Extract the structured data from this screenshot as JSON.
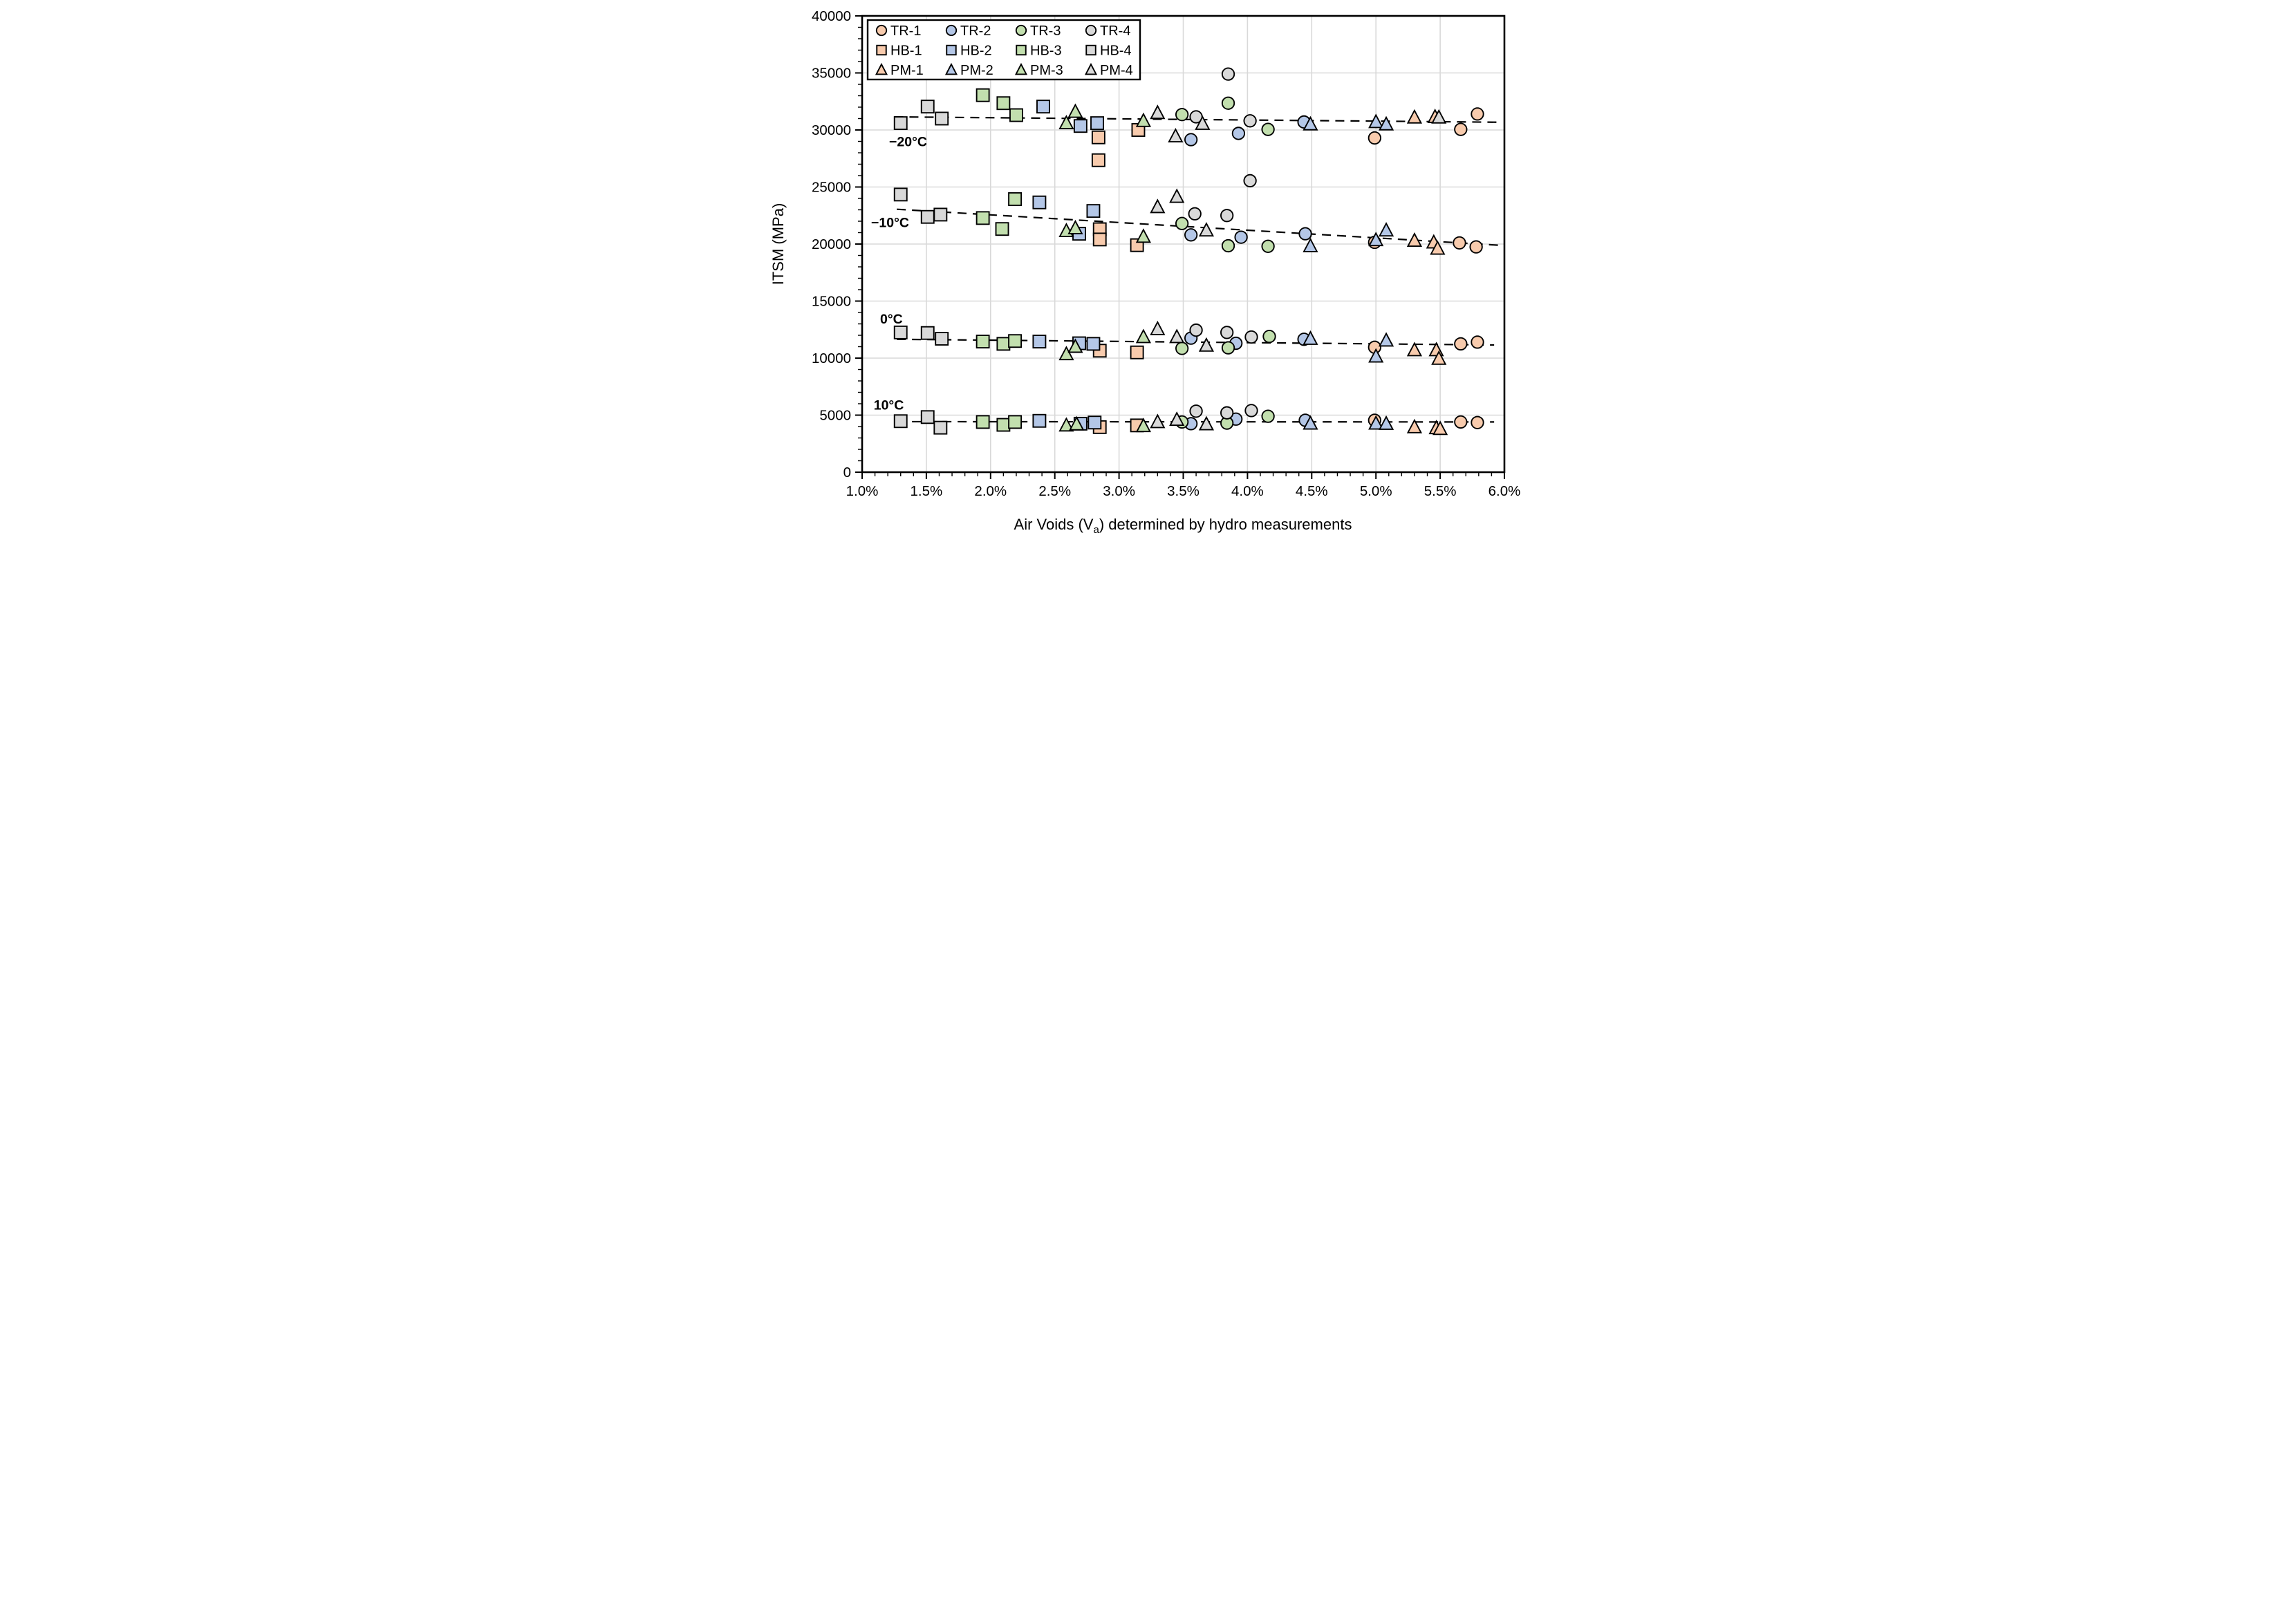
{
  "chart_data": {
    "type": "scatter",
    "title": "",
    "ylabel": "ITSM (MPa)",
    "xlabel_parts": [
      "Air Voids (V",
      "a",
      ") determined by hydro measurements"
    ],
    "xlim": [
      1.0,
      6.0
    ],
    "ylim": [
      0,
      40000
    ],
    "grid": true,
    "legend_position": "top-left",
    "x_tick_labels": [
      "1.0%",
      "1.5%",
      "2.0%",
      "2.5%",
      "3.0%",
      "3.5%",
      "4.0%",
      "4.5%",
      "5.0%",
      "5.5%",
      "6.0%"
    ],
    "x_major_values": [
      1.0,
      1.5,
      2.0,
      2.5,
      3.0,
      3.5,
      4.0,
      4.5,
      5.0,
      5.5,
      6.0
    ],
    "x_minor_step": 0.1,
    "y_tick_labels": [
      "0",
      "5000",
      "10000",
      "15000",
      "20000",
      "25000",
      "30000",
      "35000",
      "40000"
    ],
    "y_major_values": [
      0,
      5000,
      10000,
      15000,
      20000,
      25000,
      30000,
      35000,
      40000
    ],
    "y_minor_step": 1000,
    "colors": {
      "orange": "#F8CBAD",
      "blue": "#B4C7E7",
      "green": "#C2DFAE",
      "gray": "#D9D9D9",
      "outline": "#000000",
      "gridline": "#D9D9D9",
      "trendline": "#000000"
    },
    "temperature_groups": [
      {
        "key": "m20",
        "label": "−20°C",
        "label_at": [
          1.21,
          29000
        ],
        "trend": [
          [
            1.25,
            31150
          ],
          [
            5.95,
            30680
          ]
        ]
      },
      {
        "key": "m10",
        "label": "−10°C",
        "label_at": [
          1.07,
          21900
        ],
        "trend": [
          [
            1.27,
            23050
          ],
          [
            5.95,
            19900
          ]
        ]
      },
      {
        "key": "p0",
        "label": "0°C",
        "label_at": [
          1.14,
          13450
        ],
        "trend": [
          [
            1.27,
            11650
          ],
          [
            5.92,
            11150
          ]
        ]
      },
      {
        "key": "p10",
        "label": "10°C",
        "label_at": [
          1.09,
          5900
        ],
        "trend": [
          [
            1.27,
            4430
          ],
          [
            5.92,
            4400
          ]
        ]
      }
    ],
    "series": [
      {
        "name": "TR-1",
        "marker": "circle",
        "color_key": "orange",
        "points": {
          "m20": [
            [
              4.99,
              29300
            ],
            [
              5.66,
              30050
            ],
            [
              5.79,
              31400
            ]
          ],
          "m10": [
            [
              4.99,
              20150
            ],
            [
              5.65,
              20100
            ],
            [
              5.78,
              19750
            ]
          ],
          "p0": [
            [
              4.99,
              10950
            ],
            [
              5.66,
              11250
            ],
            [
              5.79,
              11400
            ]
          ],
          "p10": [
            [
              4.99,
              4550
            ],
            [
              5.66,
              4400
            ],
            [
              5.79,
              4350
            ]
          ]
        }
      },
      {
        "name": "TR-2",
        "marker": "circle",
        "color_key": "blue",
        "points": {
          "m20": [
            [
              3.56,
              29150
            ],
            [
              3.93,
              29700
            ],
            [
              4.44,
              30700
            ]
          ],
          "m10": [
            [
              3.56,
              20800
            ],
            [
              3.95,
              20600
            ],
            [
              4.45,
              20900
            ]
          ],
          "p0": [
            [
              3.56,
              11750
            ],
            [
              3.91,
              11300
            ],
            [
              4.44,
              11650
            ]
          ],
          "p10": [
            [
              3.56,
              4250
            ],
            [
              3.91,
              4650
            ],
            [
              4.45,
              4550
            ]
          ]
        }
      },
      {
        "name": "TR-3",
        "marker": "circle",
        "color_key": "green",
        "points": {
          "m20": [
            [
              3.49,
              31350
            ],
            [
              3.85,
              32350
            ],
            [
              4.16,
              30050
            ]
          ],
          "m10": [
            [
              3.49,
              21800
            ],
            [
              3.85,
              19850
            ],
            [
              4.16,
              19800
            ]
          ],
          "p0": [
            [
              3.49,
              10850
            ],
            [
              3.85,
              10900
            ],
            [
              4.17,
              11900
            ]
          ],
          "p10": [
            [
              3.49,
              4400
            ],
            [
              3.84,
              4300
            ],
            [
              4.16,
              4900
            ]
          ]
        }
      },
      {
        "name": "TR-4",
        "marker": "circle",
        "color_key": "gray",
        "points": {
          "m20": [
            [
              3.6,
              31150
            ],
            [
              3.85,
              34900
            ],
            [
              4.02,
              30800
            ]
          ],
          "m10": [
            [
              3.59,
              22650
            ],
            [
              3.84,
              22500
            ],
            [
              4.02,
              25550
            ]
          ],
          "p0": [
            [
              3.6,
              12450
            ],
            [
              3.84,
              12250
            ],
            [
              4.03,
              11850
            ]
          ],
          "p10": [
            [
              3.6,
              5350
            ],
            [
              3.84,
              5200
            ],
            [
              4.03,
              5400
            ]
          ]
        }
      },
      {
        "name": "HB-1",
        "marker": "square",
        "color_key": "orange",
        "points": {
          "m20": [
            [
              2.84,
              29350
            ],
            [
              2.84,
              27350
            ],
            [
              3.15,
              30000
            ]
          ],
          "m10": [
            [
              2.85,
              21300
            ],
            [
              2.85,
              20400
            ],
            [
              3.14,
              19900
            ]
          ],
          "p0": [
            [
              2.85,
              10650
            ],
            [
              3.14,
              10500
            ]
          ],
          "p10": [
            [
              2.85,
              3950
            ],
            [
              3.14,
              4100
            ]
          ]
        }
      },
      {
        "name": "HB-2",
        "marker": "square",
        "color_key": "blue",
        "points": {
          "m20": [
            [
              2.41,
              32050
            ],
            [
              2.7,
              30350
            ],
            [
              2.83,
              30600
            ]
          ],
          "m10": [
            [
              2.38,
              23650
            ],
            [
              2.69,
              20900
            ],
            [
              2.8,
              22900
            ]
          ],
          "p0": [
            [
              2.38,
              11450
            ],
            [
              2.69,
              11300
            ],
            [
              2.8,
              11250
            ]
          ],
          "p10": [
            [
              2.38,
              4500
            ],
            [
              2.7,
              4250
            ],
            [
              2.81,
              4350
            ]
          ]
        }
      },
      {
        "name": "HB-3",
        "marker": "square",
        "color_key": "green",
        "points": {
          "m20": [
            [
              1.94,
              33050
            ],
            [
              2.1,
              32350
            ],
            [
              2.2,
              31300
            ]
          ],
          "m10": [
            [
              1.94,
              22280
            ],
            [
              2.09,
              21320
            ],
            [
              2.19,
              23940
            ]
          ],
          "p0": [
            [
              1.94,
              11450
            ],
            [
              2.1,
              11250
            ],
            [
              2.19,
              11500
            ]
          ],
          "p10": [
            [
              1.94,
              4400
            ],
            [
              2.1,
              4150
            ],
            [
              2.19,
              4400
            ]
          ]
        }
      },
      {
        "name": "HB-4",
        "marker": "square",
        "color_key": "gray",
        "points": {
          "m20": [
            [
              1.3,
              30600
            ],
            [
              1.51,
              32050
            ],
            [
              1.62,
              31000
            ]
          ],
          "m10": [
            [
              1.3,
              24340
            ],
            [
              1.51,
              22380
            ],
            [
              1.61,
              22580
            ]
          ],
          "p0": [
            [
              1.3,
              12250
            ],
            [
              1.51,
              12200
            ],
            [
              1.62,
              11700
            ]
          ],
          "p10": [
            [
              1.3,
              4470
            ],
            [
              1.51,
              4830
            ],
            [
              1.61,
              3900
            ]
          ]
        }
      },
      {
        "name": "PM-1",
        "marker": "triangle",
        "color_key": "orange",
        "points": {
          "m20": [
            [
              5.3,
              31100
            ],
            [
              5.46,
              31150
            ]
          ],
          "m10": [
            [
              5.3,
              20300
            ],
            [
              5.45,
              20150
            ],
            [
              5.48,
              19600
            ]
          ],
          "p0": [
            [
              5.3,
              10700
            ],
            [
              5.47,
              10700
            ],
            [
              5.49,
              9950
            ]
          ],
          "p10": [
            [
              5.3,
              3950
            ],
            [
              5.47,
              3870
            ],
            [
              5.5,
              3800
            ]
          ]
        }
      },
      {
        "name": "PM-2",
        "marker": "triangle",
        "color_key": "blue",
        "points": {
          "m20": [
            [
              4.49,
              30500
            ],
            [
              5.0,
              30700
            ],
            [
              5.08,
              30500
            ]
          ],
          "m10": [
            [
              4.49,
              19820
            ],
            [
              5.0,
              20350
            ],
            [
              5.08,
              21200
            ]
          ],
          "p0": [
            [
              4.49,
              11700
            ],
            [
              5.0,
              10150
            ],
            [
              5.08,
              11550
            ]
          ],
          "p10": [
            [
              4.49,
              4270
            ],
            [
              5.0,
              4270
            ],
            [
              5.08,
              4250
            ]
          ]
        }
      },
      {
        "name": "PM-3",
        "marker": "triangle",
        "color_key": "green",
        "points": {
          "m20": [
            [
              2.59,
              30600
            ],
            [
              2.66,
              31600
            ],
            [
              3.19,
              30800
            ]
          ],
          "m10": [
            [
              2.59,
              21150
            ],
            [
              2.66,
              21400
            ],
            [
              3.19,
              20650
            ]
          ],
          "p0": [
            [
              2.59,
              10350
            ],
            [
              2.66,
              11000
            ],
            [
              3.19,
              11850
            ]
          ],
          "p10": [
            [
              2.59,
              4100
            ],
            [
              2.67,
              4200
            ],
            [
              3.19,
              4050
            ]
          ]
        }
      },
      {
        "name": "PM-4",
        "marker": "triangle",
        "color_key": "gray",
        "points": {
          "m20": [
            [
              3.3,
              31500
            ],
            [
              3.44,
              29450
            ],
            [
              3.65,
              30550
            ],
            [
              5.49,
              31100
            ]
          ],
          "m10": [
            [
              3.3,
              23250
            ],
            [
              3.45,
              24150
            ],
            [
              3.68,
              21200
            ]
          ],
          "p0": [
            [
              3.3,
              12550
            ],
            [
              3.45,
              11850
            ],
            [
              3.68,
              11100
            ]
          ],
          "p10": [
            [
              3.3,
              4400
            ],
            [
              3.45,
              4600
            ],
            [
              3.68,
              4210
            ]
          ]
        }
      }
    ]
  }
}
